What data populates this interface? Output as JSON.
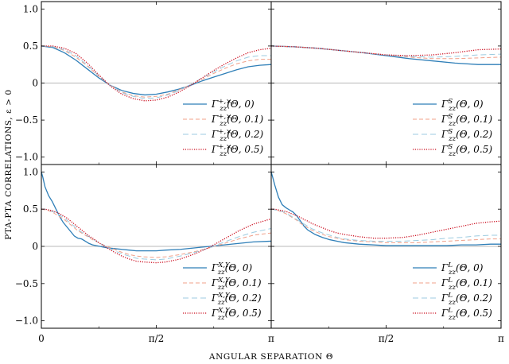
{
  "figure": {
    "ylabel": "PTA-PTA CORRELATIONS,  ε > 0",
    "xlabel": "ANGULAR SEPARATION  Θ"
  },
  "styles": [
    {
      "color": "#2f7fb8",
      "dash": "solid",
      "width": 1.3
    },
    {
      "color": "#f0a08a",
      "dash": "5,3",
      "width": 1.0
    },
    {
      "color": "#9ccbe0",
      "dash": "7,4",
      "width": 1.0
    },
    {
      "color": "#cc1122",
      "dash": "1.2,1.6",
      "width": 1.3
    }
  ],
  "chart_data": [
    {
      "type": "line",
      "panel": "top-left",
      "x_ticks": [
        "0",
        "π/2",
        "π"
      ],
      "y_ticks": [
        "1.0",
        "0.5",
        "0",
        "−0.5",
        "−1.0"
      ],
      "xlim": [
        0,
        3.1416
      ],
      "ylim": [
        -1.1,
        1.1
      ],
      "legend_position": "bottom-right",
      "x": [
        0,
        0.1571,
        0.3142,
        0.4712,
        0.6283,
        0.7854,
        0.9425,
        1.0996,
        1.2566,
        1.4137,
        1.5708,
        1.7279,
        1.885,
        2.042,
        2.1991,
        2.3562,
        2.5133,
        2.6704,
        2.8274,
        2.9845,
        3.1416
      ],
      "series": [
        {
          "name": "Γ_zz^{+,×}(Θ, 0)",
          "values": [
            0.5,
            0.48,
            0.41,
            0.31,
            0.19,
            0.07,
            -0.03,
            -0.1,
            -0.14,
            -0.16,
            -0.15,
            -0.12,
            -0.08,
            -0.03,
            0.03,
            0.08,
            0.13,
            0.18,
            0.22,
            0.24,
            0.25
          ]
        },
        {
          "name": "Γ_zz^{+,×}(Θ, 0.1)",
          "values": [
            0.5,
            0.49,
            0.44,
            0.35,
            0.23,
            0.09,
            -0.03,
            -0.12,
            -0.17,
            -0.19,
            -0.18,
            -0.15,
            -0.09,
            -0.02,
            0.05,
            0.13,
            0.2,
            0.26,
            0.3,
            0.32,
            0.32
          ]
        },
        {
          "name": "Γ_zz^{+,×}(Θ, 0.2)",
          "values": [
            0.5,
            0.49,
            0.45,
            0.37,
            0.24,
            0.1,
            -0.03,
            -0.13,
            -0.18,
            -0.21,
            -0.2,
            -0.16,
            -0.1,
            -0.02,
            0.07,
            0.15,
            0.23,
            0.3,
            0.35,
            0.37,
            0.37
          ]
        },
        {
          "name": "Γ_zz^{+,×}(Θ, 0.5)",
          "values": [
            0.5,
            0.5,
            0.47,
            0.4,
            0.27,
            0.11,
            -0.04,
            -0.15,
            -0.21,
            -0.24,
            -0.23,
            -0.19,
            -0.12,
            -0.03,
            0.07,
            0.17,
            0.26,
            0.34,
            0.41,
            0.45,
            0.47
          ]
        }
      ]
    },
    {
      "type": "line",
      "panel": "top-right",
      "x_ticks": [
        "0",
        "π/2",
        "π"
      ],
      "y_ticks": [
        "1.0",
        "0.5",
        "0",
        "−0.5",
        "−1.0"
      ],
      "xlim": [
        0,
        3.1416
      ],
      "ylim": [
        -1.1,
        1.1
      ],
      "legend_position": "bottom-right",
      "x": [
        0,
        0.3142,
        0.6283,
        0.9425,
        1.2566,
        1.5708,
        1.885,
        2.1991,
        2.5133,
        2.8274,
        3.1416
      ],
      "series": [
        {
          "name": "Γ_zz^{S}(Θ, 0)",
          "values": [
            0.5,
            0.49,
            0.47,
            0.44,
            0.41,
            0.37,
            0.33,
            0.3,
            0.27,
            0.25,
            0.25
          ]
        },
        {
          "name": "Γ_zz^{S}(Θ, 0.1)",
          "values": [
            0.5,
            0.49,
            0.47,
            0.44,
            0.41,
            0.38,
            0.35,
            0.33,
            0.33,
            0.34,
            0.35
          ]
        },
        {
          "name": "Γ_zz^{S}(Θ, 0.2)",
          "values": [
            0.5,
            0.49,
            0.47,
            0.44,
            0.41,
            0.38,
            0.36,
            0.35,
            0.36,
            0.38,
            0.39
          ]
        },
        {
          "name": "Γ_zz^{S}(Θ, 0.5)",
          "values": [
            0.5,
            0.49,
            0.47,
            0.44,
            0.41,
            0.38,
            0.37,
            0.38,
            0.41,
            0.45,
            0.46
          ]
        }
      ]
    },
    {
      "type": "line",
      "panel": "bottom-left",
      "x_ticks": [
        "0",
        "π/2",
        "π"
      ],
      "y_ticks": [
        "1.0",
        "0.5",
        "0",
        "−0.5",
        "−1.0"
      ],
      "xlim": [
        0,
        3.1416
      ],
      "ylim": [
        -1.1,
        1.1
      ],
      "legend_position": "bottom-right",
      "x": [
        0,
        0.02,
        0.05,
        0.1,
        0.15,
        0.2,
        0.25,
        0.3,
        0.35,
        0.4,
        0.45,
        0.5,
        0.55,
        0.6,
        0.65,
        0.7,
        0.8,
        0.9,
        1.0,
        1.1,
        1.2,
        1.3,
        1.4,
        1.5708,
        1.7,
        1.9,
        2.1,
        2.3,
        2.5,
        2.7,
        2.9,
        3.1416
      ],
      "series": [
        {
          "name": "Γ_zz^{X,Y}(Θ, 0)",
          "values": [
            1.0,
            0.93,
            0.8,
            0.68,
            0.6,
            0.5,
            0.4,
            0.32,
            0.26,
            0.2,
            0.14,
            0.11,
            0.1,
            0.07,
            0.04,
            0.02,
            0.0,
            -0.02,
            -0.03,
            -0.04,
            -0.05,
            -0.06,
            -0.06,
            -0.06,
            -0.05,
            -0.04,
            -0.02,
            0.0,
            0.02,
            0.04,
            0.06,
            0.07
          ]
        },
        {
          "name": "Γ_zz^{X,Y}(Θ, 0.1)",
          "values": [
            0.5,
            0.5,
            0.49,
            0.48,
            0.46,
            0.43,
            0.4,
            0.37,
            0.33,
            0.29,
            0.25,
            0.21,
            0.18,
            0.15,
            0.12,
            0.09,
            0.04,
            0.0,
            -0.04,
            -0.08,
            -0.11,
            -0.13,
            -0.14,
            -0.15,
            -0.14,
            -0.11,
            -0.07,
            -0.02,
            0.04,
            0.1,
            0.15,
            0.18
          ]
        },
        {
          "name": "Γ_zz^{X,Y}(Θ, 0.2)",
          "values": [
            0.5,
            0.5,
            0.5,
            0.49,
            0.47,
            0.45,
            0.42,
            0.39,
            0.35,
            0.31,
            0.27,
            0.23,
            0.19,
            0.16,
            0.13,
            0.1,
            0.04,
            -0.01,
            -0.06,
            -0.1,
            -0.13,
            -0.16,
            -0.17,
            -0.18,
            -0.17,
            -0.13,
            -0.08,
            -0.02,
            0.06,
            0.13,
            0.19,
            0.24
          ]
        },
        {
          "name": "Γ_zz^{X,Y}(Θ, 0.5)",
          "values": [
            0.5,
            0.5,
            0.5,
            0.49,
            0.48,
            0.46,
            0.44,
            0.41,
            0.38,
            0.34,
            0.3,
            0.26,
            0.22,
            0.18,
            0.14,
            0.11,
            0.04,
            -0.02,
            -0.08,
            -0.13,
            -0.17,
            -0.2,
            -0.21,
            -0.22,
            -0.21,
            -0.17,
            -0.1,
            -0.01,
            0.1,
            0.21,
            0.3,
            0.37
          ]
        }
      ]
    },
    {
      "type": "line",
      "panel": "bottom-right",
      "x_ticks": [
        "0",
        "π/2",
        "π"
      ],
      "y_ticks": [
        "1.0",
        "0.5",
        "0",
        "−0.5",
        "−1.0"
      ],
      "xlim": [
        0,
        3.1416
      ],
      "ylim": [
        -1.1,
        1.1
      ],
      "legend_position": "bottom-right",
      "x": [
        0,
        0.02,
        0.05,
        0.1,
        0.15,
        0.2,
        0.25,
        0.3,
        0.35,
        0.4,
        0.45,
        0.5,
        0.55,
        0.6,
        0.7,
        0.8,
        0.9,
        1.0,
        1.2,
        1.4,
        1.5708,
        1.8,
        2.0,
        2.2,
        2.4,
        2.6,
        2.8,
        3.0,
        3.1416
      ],
      "series": [
        {
          "name": "Γ_zz^{L}(Θ, 0)",
          "values": [
            1.0,
            0.93,
            0.82,
            0.66,
            0.56,
            0.52,
            0.49,
            0.46,
            0.41,
            0.34,
            0.27,
            0.22,
            0.19,
            0.16,
            0.12,
            0.09,
            0.07,
            0.05,
            0.03,
            0.02,
            0.01,
            0.01,
            0.01,
            0.01,
            0.01,
            0.02,
            0.02,
            0.03,
            0.03
          ]
        },
        {
          "name": "Γ_zz^{L}(Θ, 0.1)",
          "values": [
            0.5,
            0.5,
            0.49,
            0.48,
            0.46,
            0.44,
            0.41,
            0.38,
            0.35,
            0.31,
            0.28,
            0.25,
            0.22,
            0.2,
            0.16,
            0.13,
            0.11,
            0.09,
            0.07,
            0.06,
            0.05,
            0.05,
            0.05,
            0.06,
            0.07,
            0.08,
            0.09,
            0.1,
            0.1
          ]
        },
        {
          "name": "Γ_zz^{L}(Θ, 0.2)",
          "values": [
            0.5,
            0.5,
            0.49,
            0.48,
            0.47,
            0.45,
            0.42,
            0.39,
            0.36,
            0.33,
            0.3,
            0.27,
            0.24,
            0.22,
            0.18,
            0.15,
            0.12,
            0.1,
            0.08,
            0.07,
            0.07,
            0.07,
            0.08,
            0.09,
            0.11,
            0.12,
            0.14,
            0.15,
            0.15
          ]
        },
        {
          "name": "Γ_zz^{L}(Θ, 0.5)",
          "values": [
            0.5,
            0.5,
            0.5,
            0.49,
            0.48,
            0.47,
            0.45,
            0.43,
            0.41,
            0.39,
            0.36,
            0.34,
            0.31,
            0.29,
            0.25,
            0.21,
            0.18,
            0.16,
            0.13,
            0.11,
            0.11,
            0.12,
            0.15,
            0.19,
            0.23,
            0.27,
            0.31,
            0.33,
            0.34
          ]
        }
      ]
    }
  ]
}
